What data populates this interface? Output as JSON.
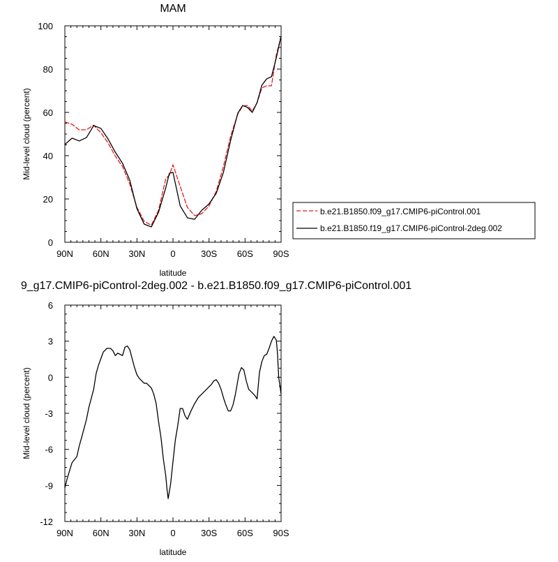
{
  "chart_data": [
    {
      "type": "line",
      "title": "MAM",
      "xlabel": "latitude",
      "ylabel": "Mid-level cloud (percent)",
      "xlim": [
        90,
        -90
      ],
      "ylim": [
        0,
        100
      ],
      "x_ticks": [
        90,
        60,
        30,
        0,
        -30,
        -60,
        -90
      ],
      "x_tick_labels": [
        "90N",
        "60N",
        "30N",
        "0",
        "30S",
        "60S",
        "90S"
      ],
      "y_ticks": [
        0,
        20,
        40,
        60,
        80,
        100
      ],
      "y_tick_labels": [
        "0",
        "20",
        "40",
        "60",
        "80",
        "100"
      ],
      "legend_position": "right, below plot center",
      "series": [
        {
          "name": "b.e21.B1850.f09_g17.CMIP6-piControl.001",
          "color": "#e8191a",
          "dash": "dashed",
          "x": [
            90,
            84,
            78,
            72,
            66,
            60,
            54,
            48,
            42,
            36,
            30,
            24,
            18,
            12,
            6,
            3,
            0,
            -6,
            -12,
            -18,
            -24,
            -30,
            -36,
            -42,
            -48,
            -54,
            -58,
            -62,
            -66,
            -70,
            -74,
            -78,
            -82,
            -86,
            -90
          ],
          "y": [
            55.6,
            54.5,
            51.9,
            52.0,
            54.1,
            50.6,
            45.9,
            39.8,
            35.0,
            26.9,
            16.1,
            9.7,
            7.9,
            14.8,
            29.4,
            31.0,
            35.8,
            25.8,
            16.1,
            12.3,
            13.2,
            16.8,
            23.5,
            35.0,
            49.0,
            59.3,
            62.9,
            63.2,
            60.6,
            64.5,
            71.3,
            72.3,
            72.3,
            86.5,
            95.2
          ]
        },
        {
          "name": "b.e21.B1850.f19_g17.CMIP6-piControl-2deg.002",
          "color": "#000000",
          "dash": "solid",
          "x": [
            90,
            84,
            78,
            72,
            66,
            60,
            54,
            48,
            42,
            36,
            30,
            24,
            18,
            12,
            6,
            3,
            0,
            -6,
            -12,
            -18,
            -24,
            -30,
            -36,
            -42,
            -48,
            -54,
            -58,
            -62,
            -66,
            -70,
            -74,
            -78,
            -82,
            -86,
            -90
          ],
          "y": [
            45.2,
            48.1,
            46.8,
            48.4,
            53.9,
            52.6,
            47.7,
            41.6,
            36.5,
            28.7,
            15.5,
            8.4,
            7.1,
            13.9,
            25.2,
            31.9,
            32.3,
            16.8,
            11.3,
            10.6,
            14.8,
            17.7,
            22.6,
            32.3,
            47.1,
            59.7,
            63.2,
            62.3,
            60.0,
            64.5,
            72.6,
            75.5,
            76.5,
            85.2,
            95.2
          ]
        }
      ]
    },
    {
      "type": "line",
      "title": "9_g17.CMIP6-piControl-2deg.002 - b.e21.B1850.f09_g17.CMIP6-piControl.001",
      "xlabel": "latitude",
      "ylabel": "Mid-level cloud (percent)",
      "xlim": [
        90,
        -90
      ],
      "ylim": [
        -12,
        6
      ],
      "x_ticks": [
        90,
        60,
        30,
        0,
        -30,
        -60,
        -90
      ],
      "x_tick_labels": [
        "90N",
        "60N",
        "30N",
        "0",
        "30S",
        "60S",
        "90S"
      ],
      "y_ticks": [
        -12,
        -9,
        -6,
        -3,
        0,
        3,
        6
      ],
      "y_tick_labels": [
        "-12",
        "-9",
        "-6",
        "-3",
        "0",
        "3",
        "6"
      ],
      "series": [
        {
          "color": "#000000",
          "dash": "solid",
          "x": [
            90,
            88,
            84,
            80,
            78,
            76,
            72,
            70,
            66,
            64,
            62,
            58,
            55,
            52,
            50,
            48,
            46,
            42,
            40,
            38,
            36,
            32,
            30,
            28,
            24,
            22,
            20,
            18,
            16,
            14,
            12,
            10,
            8,
            6,
            5,
            4,
            3,
            2,
            0,
            -2,
            -4,
            -6,
            -8,
            -10,
            -12,
            -15,
            -18,
            -21,
            -24,
            -28,
            -32,
            -34,
            -36,
            -38,
            -40,
            -42,
            -44,
            -46,
            -48,
            -50,
            -52,
            -55,
            -57,
            -59,
            -61,
            -63,
            -66,
            -68,
            -70,
            -72,
            -74,
            -76,
            -78,
            -80,
            -82,
            -84,
            -86,
            -87,
            -88,
            -90
          ],
          "y": [
            -9.2,
            -8.4,
            -7.1,
            -6.6,
            -5.7,
            -5.0,
            -3.5,
            -2.5,
            -1.0,
            0.3,
            1.0,
            2.1,
            2.4,
            2.4,
            2.2,
            1.8,
            2.0,
            1.8,
            2.5,
            2.6,
            2.3,
            0.8,
            0.2,
            -0.1,
            -0.5,
            -0.5,
            -0.7,
            -0.9,
            -1.4,
            -2.2,
            -3.7,
            -5.0,
            -6.8,
            -8.2,
            -9.3,
            -10.1,
            -9.5,
            -8.9,
            -7.0,
            -5.2,
            -4.0,
            -2.6,
            -2.6,
            -3.2,
            -3.5,
            -2.8,
            -2.2,
            -1.7,
            -1.4,
            -1.0,
            -0.6,
            -0.3,
            -0.2,
            -0.5,
            -1.0,
            -1.7,
            -2.3,
            -2.8,
            -2.8,
            -2.3,
            -1.4,
            0.3,
            0.8,
            0.6,
            -0.3,
            -1.0,
            -1.3,
            -1.5,
            -1.8,
            0.4,
            1.3,
            1.8,
            1.9,
            2.4,
            3.0,
            3.4,
            3.1,
            2.0,
            0.0,
            -1.4
          ]
        }
      ]
    }
  ]
}
